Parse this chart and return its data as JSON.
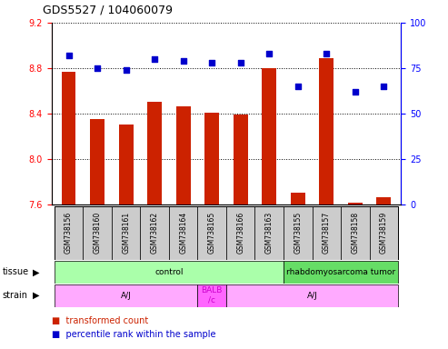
{
  "title": "GDS5527 / 104060079",
  "samples": [
    "GSM738156",
    "GSM738160",
    "GSM738161",
    "GSM738162",
    "GSM738164",
    "GSM738165",
    "GSM738166",
    "GSM738163",
    "GSM738155",
    "GSM738157",
    "GSM738158",
    "GSM738159"
  ],
  "bar_values": [
    8.77,
    8.35,
    8.3,
    8.5,
    8.46,
    8.41,
    8.39,
    8.8,
    7.7,
    8.89,
    7.61,
    7.66
  ],
  "dot_values": [
    82,
    75,
    74,
    80,
    79,
    78,
    78,
    83,
    65,
    83,
    62,
    65
  ],
  "ylim_left": [
    7.6,
    9.2
  ],
  "ylim_right": [
    0,
    100
  ],
  "yticks_left": [
    7.6,
    8.0,
    8.4,
    8.8,
    9.2
  ],
  "yticks_right": [
    0,
    25,
    50,
    75,
    100
  ],
  "bar_color": "#cc2200",
  "dot_color": "#0000cc",
  "tissue_labels": [
    {
      "text": "control",
      "start": 0,
      "end": 8,
      "color": "#aaffaa"
    },
    {
      "text": "rhabdomyosarcoma tumor",
      "start": 8,
      "end": 12,
      "color": "#66dd66"
    }
  ],
  "strain_labels": [
    {
      "text": "A/J",
      "start": 0,
      "end": 5,
      "color": "#ffaaff"
    },
    {
      "text": "BALB\n/c",
      "start": 5,
      "end": 6,
      "color": "#ff66ff"
    },
    {
      "text": "A/J",
      "start": 6,
      "end": 12,
      "color": "#ffaaff"
    }
  ]
}
